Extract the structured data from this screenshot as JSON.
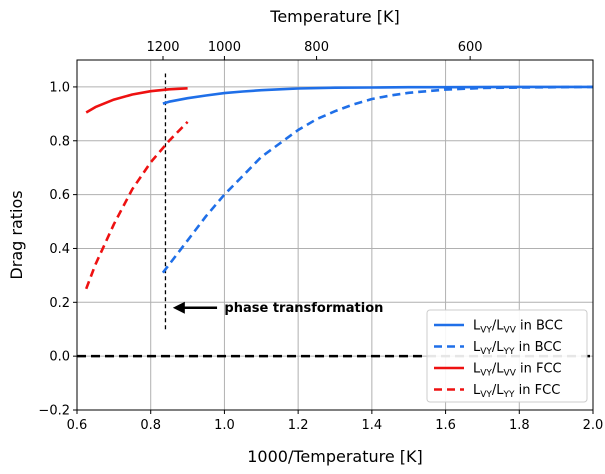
{
  "chart_data": {
    "type": "line",
    "title": "",
    "xlabel": "1000/Temperature [K]",
    "ylabel": "Drag ratios",
    "top_xlabel": "Temperature [K]",
    "xlim": [
      0.6,
      2.0
    ],
    "ylim": [
      -0.2,
      1.1
    ],
    "xticks": [
      0.6,
      0.8,
      1.0,
      1.2,
      1.4,
      1.6,
      1.8,
      2.0
    ],
    "xtick_labels": [
      "0.6",
      "0.8",
      "1.0",
      "1.2",
      "1.4",
      "1.6",
      "1.8",
      "2.0"
    ],
    "yticks": [
      -0.2,
      0.0,
      0.2,
      0.4,
      0.6,
      0.8,
      1.0
    ],
    "ytick_labels": [
      "−0.2",
      "0.0",
      "0.2",
      "0.4",
      "0.6",
      "0.8",
      "1.0"
    ],
    "top_ticks": [
      1200,
      1000,
      800,
      600
    ],
    "top_tick_labels": [
      "1200",
      "1000",
      "800",
      "600"
    ],
    "grid": true,
    "legend_position": "lower-right",
    "series": [
      {
        "name_main": "L",
        "name_sub1": "VY",
        "name_mid": "/L",
        "name_sub2": "VV",
        "name_suffix": " in BCC",
        "color": "#1f6fe8",
        "dash": "solid",
        "x": [
          0.833,
          0.85,
          0.9,
          0.95,
          1.0,
          1.05,
          1.1,
          1.15,
          1.2,
          1.3,
          1.4,
          1.5,
          1.6,
          1.8,
          2.0
        ],
        "y": [
          0.938,
          0.945,
          0.958,
          0.968,
          0.977,
          0.983,
          0.988,
          0.991,
          0.994,
          0.997,
          0.998,
          0.999,
          0.999,
          1.0,
          1.0
        ]
      },
      {
        "name_main": "L",
        "name_sub1": "VY",
        "name_mid": "/L",
        "name_sub2": "YY",
        "name_suffix": " in BCC",
        "color": "#1f6fe8",
        "dash": "dashed",
        "x": [
          0.833,
          0.85,
          0.9,
          0.95,
          1.0,
          1.05,
          1.1,
          1.15,
          1.2,
          1.25,
          1.3,
          1.35,
          1.4,
          1.45,
          1.5,
          1.6,
          1.7,
          1.8,
          2.0
        ],
        "y": [
          0.31,
          0.34,
          0.43,
          0.52,
          0.6,
          0.67,
          0.74,
          0.79,
          0.84,
          0.88,
          0.91,
          0.935,
          0.955,
          0.968,
          0.978,
          0.99,
          0.996,
          0.998,
          1.0
        ]
      },
      {
        "name_main": "L",
        "name_sub1": "VY",
        "name_mid": "/L",
        "name_sub2": "VV",
        "name_suffix": " in FCC",
        "color": "#ee1111",
        "dash": "solid",
        "x": [
          0.625,
          0.65,
          0.7,
          0.75,
          0.8,
          0.85,
          0.9
        ],
        "y": [
          0.905,
          0.925,
          0.953,
          0.972,
          0.984,
          0.991,
          0.995
        ]
      },
      {
        "name_main": "L",
        "name_sub1": "VY",
        "name_mid": "/L",
        "name_sub2": "YY",
        "name_suffix": " in FCC",
        "color": "#ee1111",
        "dash": "dashed",
        "x": [
          0.625,
          0.65,
          0.7,
          0.75,
          0.8,
          0.85,
          0.9
        ],
        "y": [
          0.25,
          0.34,
          0.49,
          0.62,
          0.72,
          0.8,
          0.87
        ]
      }
    ],
    "reference_lines": [
      {
        "orientation": "horizontal",
        "y": 0.0,
        "color": "#000000",
        "dash": "dashed"
      },
      {
        "orientation": "vertical",
        "x": 0.84,
        "y_range": [
          0.1,
          1.05
        ],
        "color": "#000000",
        "dash": "dashed"
      }
    ],
    "annotation": {
      "text": "phase transformation",
      "x": 1.0,
      "y": 0.18,
      "arrow_from_x": 0.98,
      "arrow_to_x": 0.86
    }
  }
}
